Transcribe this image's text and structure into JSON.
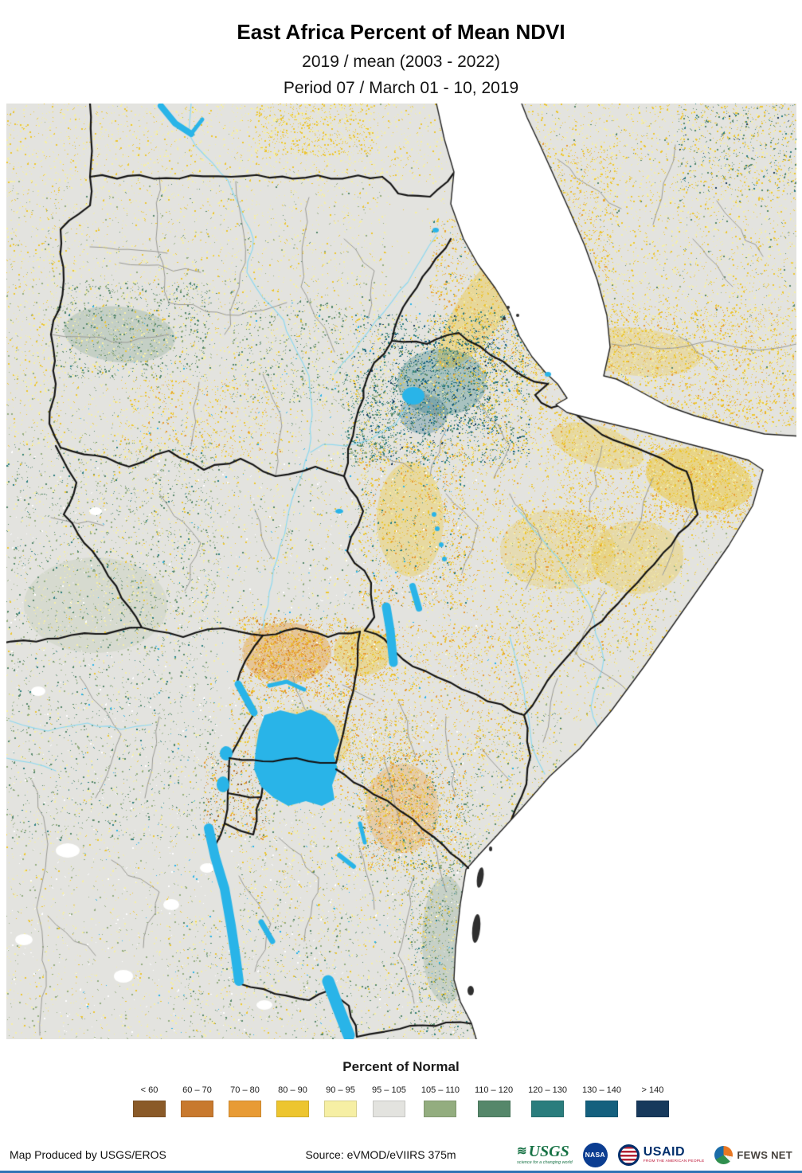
{
  "header": {
    "title": "East Africa Percent of Mean NDVI",
    "subtitle1": "2019 / mean (2003 - 2022)",
    "subtitle2": "Period 07 / March 01 - 10, 2019"
  },
  "legend": {
    "title": "Percent of Normal",
    "classes": [
      {
        "label": "< 60",
        "color": "#8a5a28"
      },
      {
        "label": "60 – 70",
        "color": "#c8792e"
      },
      {
        "label": "70 – 80",
        "color": "#e89b35"
      },
      {
        "label": "80 – 90",
        "color": "#edc52f"
      },
      {
        "label": "90 – 95",
        "color": "#f6efa4"
      },
      {
        "label": "95 – 105",
        "color": "#e3e3df"
      },
      {
        "label": "105 – 110",
        "color": "#93ad7f"
      },
      {
        "label": "110 – 120",
        "color": "#55876a"
      },
      {
        "label": "120 – 130",
        "color": "#2a7d7d"
      },
      {
        "label": "130 – 140",
        "color": "#14607e"
      },
      {
        "label": "> 140",
        "color": "#17395c"
      }
    ]
  },
  "map": {
    "ocean_color": "#ffffff",
    "land_color": "#e3e3df",
    "lake_color": "#29b4e8",
    "river_color": "#8ed9f0",
    "country_border_color": "#141414",
    "admin_border_color": "#9a9a95",
    "coast_color": "#222222"
  },
  "footer": {
    "produced_by": "Map Produced by USGS/EROS",
    "source": "Source: eVMOD/eVIIRS 375m",
    "logos": {
      "usgs": {
        "name": "USGS",
        "tagline": "science for a changing world"
      },
      "nasa": {
        "name": "NASA"
      },
      "usaid": {
        "name": "USAID",
        "tagline": "FROM THE AMERICAN PEOPLE"
      },
      "fews": {
        "name": "FEWS NET"
      }
    }
  }
}
